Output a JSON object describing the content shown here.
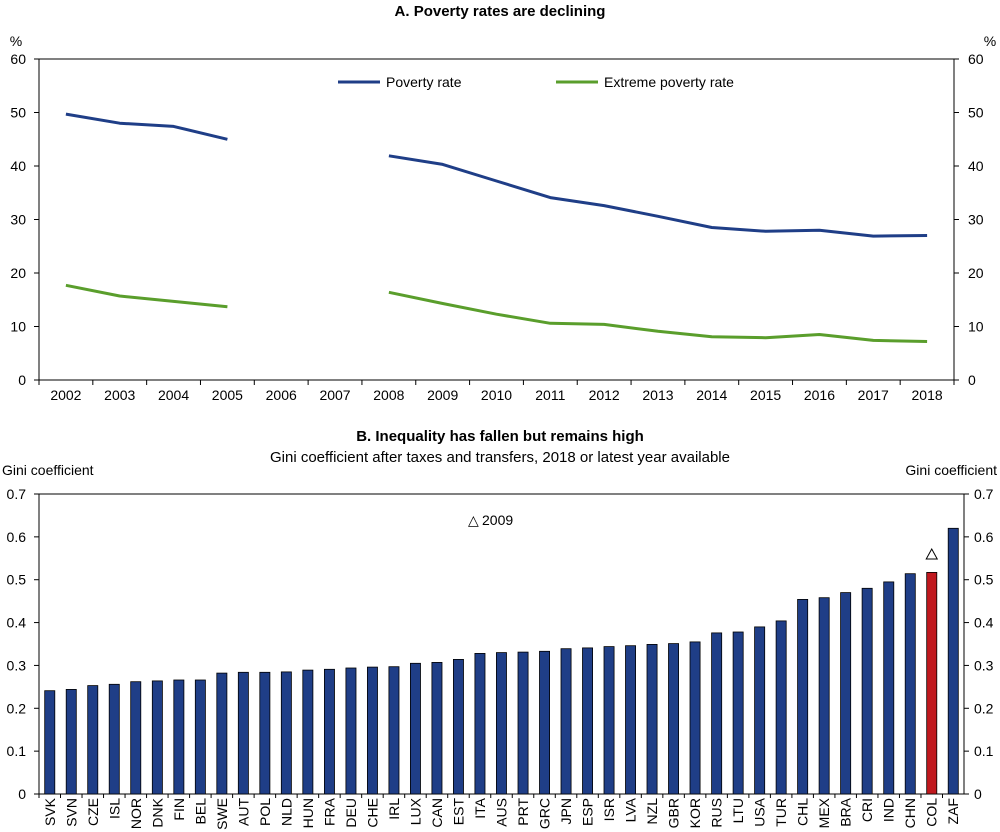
{
  "chart_data": [
    {
      "type": "line",
      "title": "A. Poverty rates are declining",
      "ylabel_left": "%",
      "ylabel_right": "%",
      "ylim": [
        0,
        60
      ],
      "yticks": [
        "0",
        "10",
        "20",
        "30",
        "40",
        "50",
        "60"
      ],
      "categories": [
        "2002",
        "2003",
        "2004",
        "2005",
        "2006",
        "2007",
        "2008",
        "2009",
        "2010",
        "2011",
        "2012",
        "2013",
        "2014",
        "2015",
        "2016",
        "2017",
        "2018"
      ],
      "legend_position": "top",
      "series": [
        {
          "name": "Poverty rate",
          "color": "#1f3e87",
          "values": [
            49.7,
            48.0,
            47.4,
            45.0,
            null,
            null,
            41.9,
            40.3,
            37.2,
            34.1,
            32.6,
            30.6,
            28.5,
            27.8,
            28.0,
            26.9,
            27.0
          ]
        },
        {
          "name": "Extreme poverty rate",
          "color": "#5a9e2c",
          "values": [
            17.7,
            15.7,
            14.7,
            13.7,
            null,
            null,
            16.4,
            14.3,
            12.3,
            10.6,
            10.4,
            9.1,
            8.1,
            7.9,
            8.5,
            7.4,
            7.2
          ]
        }
      ]
    },
    {
      "type": "bar",
      "title": "B. Inequality has fallen but remains high",
      "subtitle": "Gini coefficient after taxes and transfers, 2018 or latest year available",
      "ylabel_left": "Gini coefficient",
      "ylabel_right": "Gini coefficient",
      "ylim": [
        0,
        0.7
      ],
      "yticks": [
        "0",
        "0.1",
        "0.2",
        "0.3",
        "0.4",
        "0.5",
        "0.6",
        "0.7"
      ],
      "bar_color": "#1f3e87",
      "highlight_color": "#c0181e",
      "highlight_category": "COL",
      "marker_label": "2009",
      "marker_symbol": "△",
      "marker": {
        "category": "COL",
        "value": 0.56
      },
      "categories": [
        "SVK",
        "SVN",
        "CZE",
        "ISL",
        "NOR",
        "DNK",
        "FIN",
        "BEL",
        "SWE",
        "AUT",
        "POL",
        "NLD",
        "HUN",
        "FRA",
        "DEU",
        "CHE",
        "IRL",
        "LUX",
        "CAN",
        "EST",
        "ITA",
        "AUS",
        "PRT",
        "GRC",
        "JPN",
        "ESP",
        "ISR",
        "LVA",
        "NZL",
        "GBR",
        "KOR",
        "RUS",
        "LTU",
        "USA",
        "TUR",
        "CHL",
        "MEX",
        "BRA",
        "CRI",
        "IND",
        "CHN",
        "COL",
        "ZAF"
      ],
      "values": [
        0.241,
        0.244,
        0.253,
        0.256,
        0.262,
        0.264,
        0.266,
        0.266,
        0.282,
        0.284,
        0.284,
        0.285,
        0.289,
        0.291,
        0.294,
        0.296,
        0.297,
        0.305,
        0.307,
        0.314,
        0.328,
        0.33,
        0.331,
        0.333,
        0.339,
        0.341,
        0.344,
        0.346,
        0.349,
        0.351,
        0.355,
        0.376,
        0.378,
        0.39,
        0.404,
        0.454,
        0.458,
        0.47,
        0.48,
        0.495,
        0.514,
        0.517,
        0.62
      ]
    }
  ]
}
